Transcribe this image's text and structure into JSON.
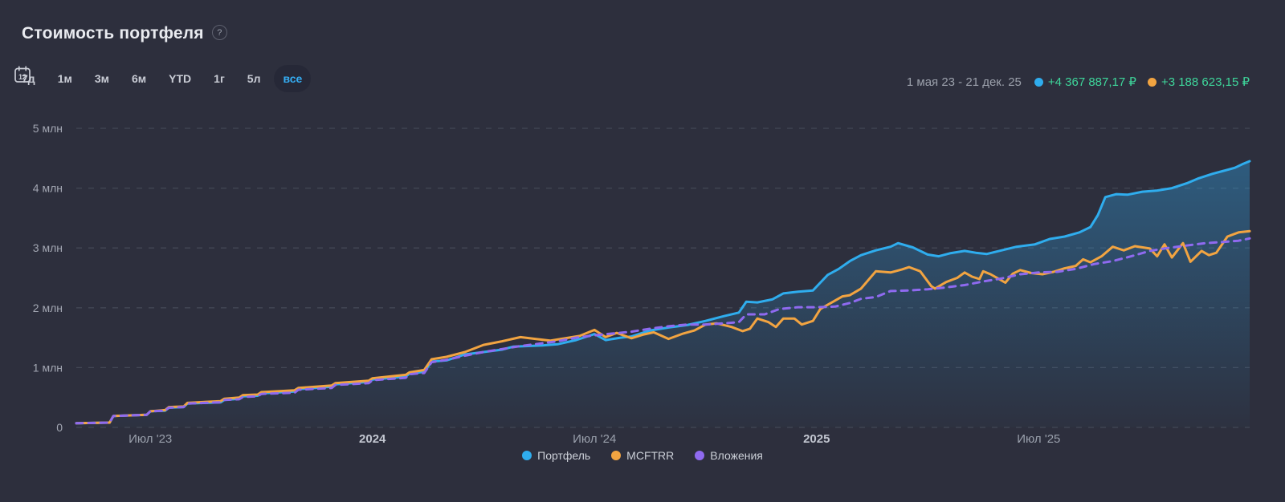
{
  "header": {
    "title": "Стоимость портфеля",
    "help_icon": "?"
  },
  "toolbar": {
    "ranges": [
      {
        "label": "7д",
        "active": false
      },
      {
        "label": "1м",
        "active": false
      },
      {
        "label": "3м",
        "active": false
      },
      {
        "label": "6м",
        "active": false
      },
      {
        "label": "YTD",
        "active": false
      },
      {
        "label": "1г",
        "active": false
      },
      {
        "label": "5л",
        "active": false
      },
      {
        "label": "все",
        "active": true
      }
    ],
    "calendar_day": "12",
    "active_color": "#35aef4"
  },
  "summary": {
    "date_range": "1 мая 23 - 21 дек. 25",
    "value_color": "#3ed69b",
    "items": [
      {
        "series": "Портфель",
        "dot_color": "#2fadee",
        "value": "+4 367 887,17 ₽"
      },
      {
        "series": "MCFTRR",
        "dot_color": "#f2a441",
        "value": "+3 188 623,15 ₽"
      }
    ]
  },
  "chart_data": {
    "type": "line",
    "title": "Стоимость портфеля",
    "x_unit": "months since 2023-05-01",
    "x_domain": [
      0,
      31.7
    ],
    "ylim": [
      0,
      5.27
    ],
    "ylabel_unit": "млн ₽",
    "grid": "horizontal dashed",
    "legend_position": "bottom-center",
    "x_ticks": [
      {
        "t": 2,
        "label": "Июл '23",
        "emphasis": false
      },
      {
        "t": 8,
        "label": "2024",
        "emphasis": true
      },
      {
        "t": 14,
        "label": "Июл '24",
        "emphasis": false
      },
      {
        "t": 20,
        "label": "2025",
        "emphasis": true
      },
      {
        "t": 26,
        "label": "Июл '25",
        "emphasis": false
      }
    ],
    "y_ticks": [
      {
        "v": 0,
        "label": "0"
      },
      {
        "v": 1,
        "label": "1 млн"
      },
      {
        "v": 2,
        "label": "2 млн"
      },
      {
        "v": 3,
        "label": "3 млн"
      },
      {
        "v": 4,
        "label": "4 млн"
      },
      {
        "v": 5,
        "label": "5 млн"
      }
    ],
    "series": [
      {
        "key": "portfolio",
        "name": "Портфель",
        "color": "#2fadee",
        "line_style": "solid",
        "area_fill": true,
        "points": [
          [
            0,
            0.07
          ],
          [
            0.9,
            0.08
          ],
          [
            1,
            0.19
          ],
          [
            1.9,
            0.21
          ],
          [
            2,
            0.27
          ],
          [
            2.4,
            0.28
          ],
          [
            2.5,
            0.33
          ],
          [
            2.9,
            0.34
          ],
          [
            3,
            0.4
          ],
          [
            3.9,
            0.42
          ],
          [
            4,
            0.46
          ],
          [
            4.4,
            0.48
          ],
          [
            4.5,
            0.52
          ],
          [
            4.9,
            0.53
          ],
          [
            5,
            0.57
          ],
          [
            5.9,
            0.6
          ],
          [
            6,
            0.64
          ],
          [
            6.9,
            0.68
          ],
          [
            7,
            0.72
          ],
          [
            7.9,
            0.76
          ],
          [
            8,
            0.8
          ],
          [
            8.9,
            0.85
          ],
          [
            9,
            0.9
          ],
          [
            9.4,
            0.93
          ],
          [
            9.6,
            1.1
          ],
          [
            10,
            1.12
          ],
          [
            10.5,
            1.22
          ],
          [
            11,
            1.26
          ],
          [
            11.5,
            1.3
          ],
          [
            11.8,
            1.35
          ],
          [
            12.2,
            1.36
          ],
          [
            12.6,
            1.37
          ],
          [
            13,
            1.39
          ],
          [
            13.5,
            1.46
          ],
          [
            14,
            1.56
          ],
          [
            14.3,
            1.46
          ],
          [
            14.7,
            1.5
          ],
          [
            15,
            1.52
          ],
          [
            15.5,
            1.62
          ],
          [
            16,
            1.67
          ],
          [
            16.5,
            1.71
          ],
          [
            17,
            1.78
          ],
          [
            17.5,
            1.86
          ],
          [
            17.9,
            1.92
          ],
          [
            18.1,
            2.1
          ],
          [
            18.4,
            2.09
          ],
          [
            18.8,
            2.14
          ],
          [
            19.1,
            2.24
          ],
          [
            19.5,
            2.27
          ],
          [
            19.9,
            2.29
          ],
          [
            20.1,
            2.42
          ],
          [
            20.3,
            2.55
          ],
          [
            20.6,
            2.65
          ],
          [
            20.9,
            2.78
          ],
          [
            21.2,
            2.88
          ],
          [
            21.6,
            2.96
          ],
          [
            22,
            3.02
          ],
          [
            22.2,
            3.08
          ],
          [
            22.6,
            3.01
          ],
          [
            23,
            2.89
          ],
          [
            23.3,
            2.86
          ],
          [
            23.6,
            2.91
          ],
          [
            24,
            2.95
          ],
          [
            24.3,
            2.92
          ],
          [
            24.6,
            2.9
          ],
          [
            25,
            2.96
          ],
          [
            25.4,
            3.02
          ],
          [
            25.9,
            3.06
          ],
          [
            26.3,
            3.15
          ],
          [
            26.7,
            3.19
          ],
          [
            27.1,
            3.26
          ],
          [
            27.4,
            3.35
          ],
          [
            27.6,
            3.55
          ],
          [
            27.8,
            3.85
          ],
          [
            28.1,
            3.9
          ],
          [
            28.4,
            3.89
          ],
          [
            28.8,
            3.94
          ],
          [
            29.2,
            3.96
          ],
          [
            29.6,
            4.0
          ],
          [
            30,
            4.08
          ],
          [
            30.3,
            4.16
          ],
          [
            30.7,
            4.24
          ],
          [
            31,
            4.29
          ],
          [
            31.3,
            4.34
          ],
          [
            31.5,
            4.4
          ],
          [
            31.7,
            4.45
          ]
        ]
      },
      {
        "key": "mcftrr",
        "name": "MCFTRR",
        "color": "#f2a441",
        "line_style": "solid",
        "area_fill": false,
        "points": [
          [
            0,
            0.07
          ],
          [
            0.9,
            0.08
          ],
          [
            1,
            0.19
          ],
          [
            1.9,
            0.21
          ],
          [
            2,
            0.27
          ],
          [
            2.4,
            0.29
          ],
          [
            2.5,
            0.34
          ],
          [
            2.9,
            0.35
          ],
          [
            3,
            0.41
          ],
          [
            3.9,
            0.44
          ],
          [
            4,
            0.48
          ],
          [
            4.4,
            0.5
          ],
          [
            4.5,
            0.54
          ],
          [
            4.9,
            0.55
          ],
          [
            5,
            0.59
          ],
          [
            5.9,
            0.62
          ],
          [
            6,
            0.66
          ],
          [
            6.9,
            0.7
          ],
          [
            7,
            0.74
          ],
          [
            7.9,
            0.78
          ],
          [
            8,
            0.82
          ],
          [
            8.9,
            0.88
          ],
          [
            9,
            0.92
          ],
          [
            9.4,
            0.96
          ],
          [
            9.6,
            1.14
          ],
          [
            10,
            1.18
          ],
          [
            10.5,
            1.26
          ],
          [
            11,
            1.38
          ],
          [
            11.5,
            1.44
          ],
          [
            12,
            1.51
          ],
          [
            12.4,
            1.48
          ],
          [
            12.8,
            1.45
          ],
          [
            13.3,
            1.5
          ],
          [
            13.6,
            1.53
          ],
          [
            14,
            1.63
          ],
          [
            14.3,
            1.51
          ],
          [
            14.6,
            1.58
          ],
          [
            15,
            1.49
          ],
          [
            15.3,
            1.55
          ],
          [
            15.6,
            1.59
          ],
          [
            16,
            1.48
          ],
          [
            16.4,
            1.57
          ],
          [
            16.7,
            1.62
          ],
          [
            17,
            1.72
          ],
          [
            17.3,
            1.74
          ],
          [
            17.7,
            1.68
          ],
          [
            18,
            1.61
          ],
          [
            18.2,
            1.65
          ],
          [
            18.4,
            1.82
          ],
          [
            18.7,
            1.76
          ],
          [
            18.9,
            1.68
          ],
          [
            19.1,
            1.82
          ],
          [
            19.4,
            1.82
          ],
          [
            19.6,
            1.72
          ],
          [
            19.9,
            1.78
          ],
          [
            20.1,
            1.98
          ],
          [
            20.3,
            2.05
          ],
          [
            20.5,
            2.12
          ],
          [
            20.7,
            2.19
          ],
          [
            20.9,
            2.21
          ],
          [
            21.2,
            2.32
          ],
          [
            21.6,
            2.61
          ],
          [
            22,
            2.59
          ],
          [
            22.3,
            2.64
          ],
          [
            22.5,
            2.68
          ],
          [
            22.8,
            2.61
          ],
          [
            23.1,
            2.36
          ],
          [
            23.2,
            2.32
          ],
          [
            23.5,
            2.43
          ],
          [
            23.8,
            2.5
          ],
          [
            24,
            2.59
          ],
          [
            24.2,
            2.52
          ],
          [
            24.4,
            2.48
          ],
          [
            24.5,
            2.61
          ],
          [
            24.7,
            2.56
          ],
          [
            24.9,
            2.49
          ],
          [
            25.1,
            2.42
          ],
          [
            25.3,
            2.57
          ],
          [
            25.5,
            2.63
          ],
          [
            25.8,
            2.58
          ],
          [
            26.1,
            2.56
          ],
          [
            26.4,
            2.6
          ],
          [
            26.7,
            2.66
          ],
          [
            27,
            2.7
          ],
          [
            27.2,
            2.81
          ],
          [
            27.4,
            2.76
          ],
          [
            27.7,
            2.86
          ],
          [
            28,
            3.02
          ],
          [
            28.3,
            2.96
          ],
          [
            28.6,
            3.03
          ],
          [
            29,
            2.99
          ],
          [
            29.2,
            2.86
          ],
          [
            29.4,
            3.06
          ],
          [
            29.6,
            2.84
          ],
          [
            29.9,
            3.08
          ],
          [
            30.1,
            2.77
          ],
          [
            30.4,
            2.95
          ],
          [
            30.6,
            2.88
          ],
          [
            30.8,
            2.92
          ],
          [
            31.1,
            3.19
          ],
          [
            31.4,
            3.26
          ],
          [
            31.7,
            3.28
          ]
        ]
      },
      {
        "key": "deposits",
        "name": "Вложения",
        "color": "#8f6af0",
        "line_style": "dashed",
        "area_fill": false,
        "points": [
          [
            0,
            0.07
          ],
          [
            0.9,
            0.08
          ],
          [
            1,
            0.19
          ],
          [
            1.9,
            0.21
          ],
          [
            2,
            0.27
          ],
          [
            2.4,
            0.28
          ],
          [
            2.5,
            0.33
          ],
          [
            2.9,
            0.34
          ],
          [
            3,
            0.4
          ],
          [
            3.9,
            0.42
          ],
          [
            4,
            0.46
          ],
          [
            4.4,
            0.47
          ],
          [
            4.5,
            0.51
          ],
          [
            4.9,
            0.52
          ],
          [
            5,
            0.56
          ],
          [
            5.9,
            0.58
          ],
          [
            6,
            0.63
          ],
          [
            6.9,
            0.66
          ],
          [
            7,
            0.71
          ],
          [
            7.9,
            0.74
          ],
          [
            8,
            0.79
          ],
          [
            8.9,
            0.83
          ],
          [
            9,
            0.89
          ],
          [
            9.4,
            0.91
          ],
          [
            9.6,
            1.09
          ],
          [
            10,
            1.13
          ],
          [
            10.5,
            1.2
          ],
          [
            11,
            1.26
          ],
          [
            11.5,
            1.31
          ],
          [
            12,
            1.36
          ],
          [
            12.5,
            1.4
          ],
          [
            13,
            1.44
          ],
          [
            13.5,
            1.5
          ],
          [
            14,
            1.54
          ],
          [
            14.5,
            1.57
          ],
          [
            15,
            1.6
          ],
          [
            15.5,
            1.65
          ],
          [
            16,
            1.69
          ],
          [
            16.5,
            1.72
          ],
          [
            17,
            1.72
          ],
          [
            17.5,
            1.74
          ],
          [
            17.9,
            1.76
          ],
          [
            18.1,
            1.89
          ],
          [
            18.6,
            1.89
          ],
          [
            19,
            1.98
          ],
          [
            19.5,
            2.01
          ],
          [
            20,
            2.01
          ],
          [
            20.5,
            2.02
          ],
          [
            20.9,
            2.08
          ],
          [
            21.2,
            2.15
          ],
          [
            21.6,
            2.18
          ],
          [
            22,
            2.28
          ],
          [
            22.5,
            2.29
          ],
          [
            23,
            2.31
          ],
          [
            23.5,
            2.34
          ],
          [
            24,
            2.38
          ],
          [
            24.5,
            2.44
          ],
          [
            25,
            2.49
          ],
          [
            25.5,
            2.56
          ],
          [
            26,
            2.59
          ],
          [
            26.5,
            2.6
          ],
          [
            27,
            2.65
          ],
          [
            27.5,
            2.73
          ],
          [
            28,
            2.78
          ],
          [
            28.5,
            2.86
          ],
          [
            29,
            2.95
          ],
          [
            29.5,
            3.0
          ],
          [
            30,
            3.04
          ],
          [
            30.5,
            3.08
          ],
          [
            31,
            3.1
          ],
          [
            31.4,
            3.12
          ],
          [
            31.7,
            3.16
          ]
        ]
      }
    ]
  }
}
